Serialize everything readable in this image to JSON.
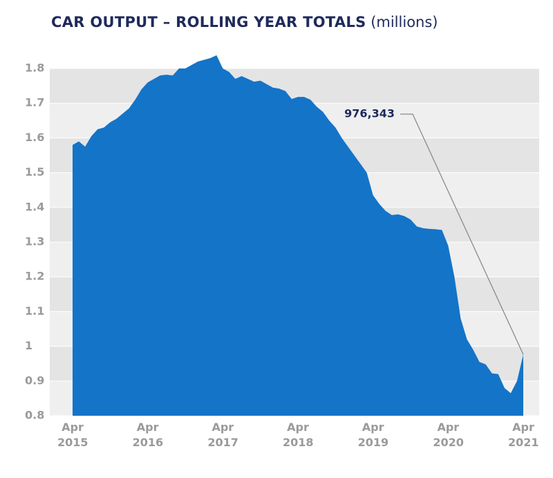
{
  "chart_data": {
    "type": "area",
    "title": "CAR OUTPUT – ROLLING YEAR TOTALS",
    "subtitle": "(millions)",
    "categories": [
      "Apr 2015",
      null,
      null,
      null,
      null,
      null,
      null,
      null,
      null,
      null,
      null,
      null,
      "Apr 2016",
      null,
      null,
      null,
      null,
      null,
      null,
      null,
      null,
      null,
      null,
      null,
      "Apr 2017",
      null,
      null,
      null,
      null,
      null,
      null,
      null,
      null,
      null,
      null,
      null,
      "Apr 2018",
      null,
      null,
      null,
      null,
      null,
      null,
      null,
      null,
      null,
      null,
      null,
      "Apr 2019",
      null,
      null,
      null,
      null,
      null,
      null,
      null,
      null,
      null,
      null,
      null,
      "Apr 2020",
      null,
      null,
      null,
      null,
      null,
      null,
      null,
      null,
      null,
      null,
      null,
      "Apr 2021"
    ],
    "values": [
      1.58,
      1.59,
      1.575,
      1.605,
      1.625,
      1.63,
      1.645,
      1.655,
      1.67,
      1.685,
      1.71,
      1.74,
      1.76,
      1.77,
      1.78,
      1.782,
      1.78,
      1.8,
      1.8,
      1.81,
      1.82,
      1.825,
      1.83,
      1.838,
      1.8,
      1.79,
      1.77,
      1.778,
      1.77,
      1.762,
      1.765,
      1.755,
      1.745,
      1.742,
      1.735,
      1.712,
      1.718,
      1.718,
      1.71,
      1.69,
      1.675,
      1.65,
      1.63,
      1.6,
      1.575,
      1.55,
      1.525,
      1.5,
      1.435,
      1.41,
      1.39,
      1.378,
      1.38,
      1.375,
      1.365,
      1.345,
      1.34,
      1.338,
      1.337,
      1.335,
      1.29,
      1.2,
      1.08,
      1.02,
      0.99,
      0.955,
      0.948,
      0.922,
      0.92,
      0.88,
      0.865,
      0.9,
      0.976343
    ],
    "value_labels": [
      null,
      null,
      null,
      null,
      null,
      null,
      null,
      null,
      null,
      null,
      null,
      null,
      null,
      null,
      null,
      null,
      null,
      null,
      null,
      null,
      null,
      null,
      null,
      null,
      null,
      null,
      null,
      null,
      null,
      null,
      null,
      null,
      null,
      null,
      null,
      null,
      null,
      null,
      null,
      null,
      null,
      null,
      null,
      null,
      null,
      null,
      null,
      null,
      null,
      null,
      null,
      null,
      null,
      null,
      null,
      null,
      null,
      null,
      null,
      null,
      null,
      null,
      null,
      null,
      null,
      null,
      null,
      null,
      null,
      null,
      null,
      null,
      "976,343"
    ],
    "color": "#1474c8",
    "ylim": [
      0.8,
      1.8
    ],
    "yticks": [
      0.8,
      0.9,
      1,
      1.1,
      1.2,
      1.3,
      1.4,
      1.5,
      1.6,
      1.7,
      1.8
    ],
    "grid": true
  }
}
